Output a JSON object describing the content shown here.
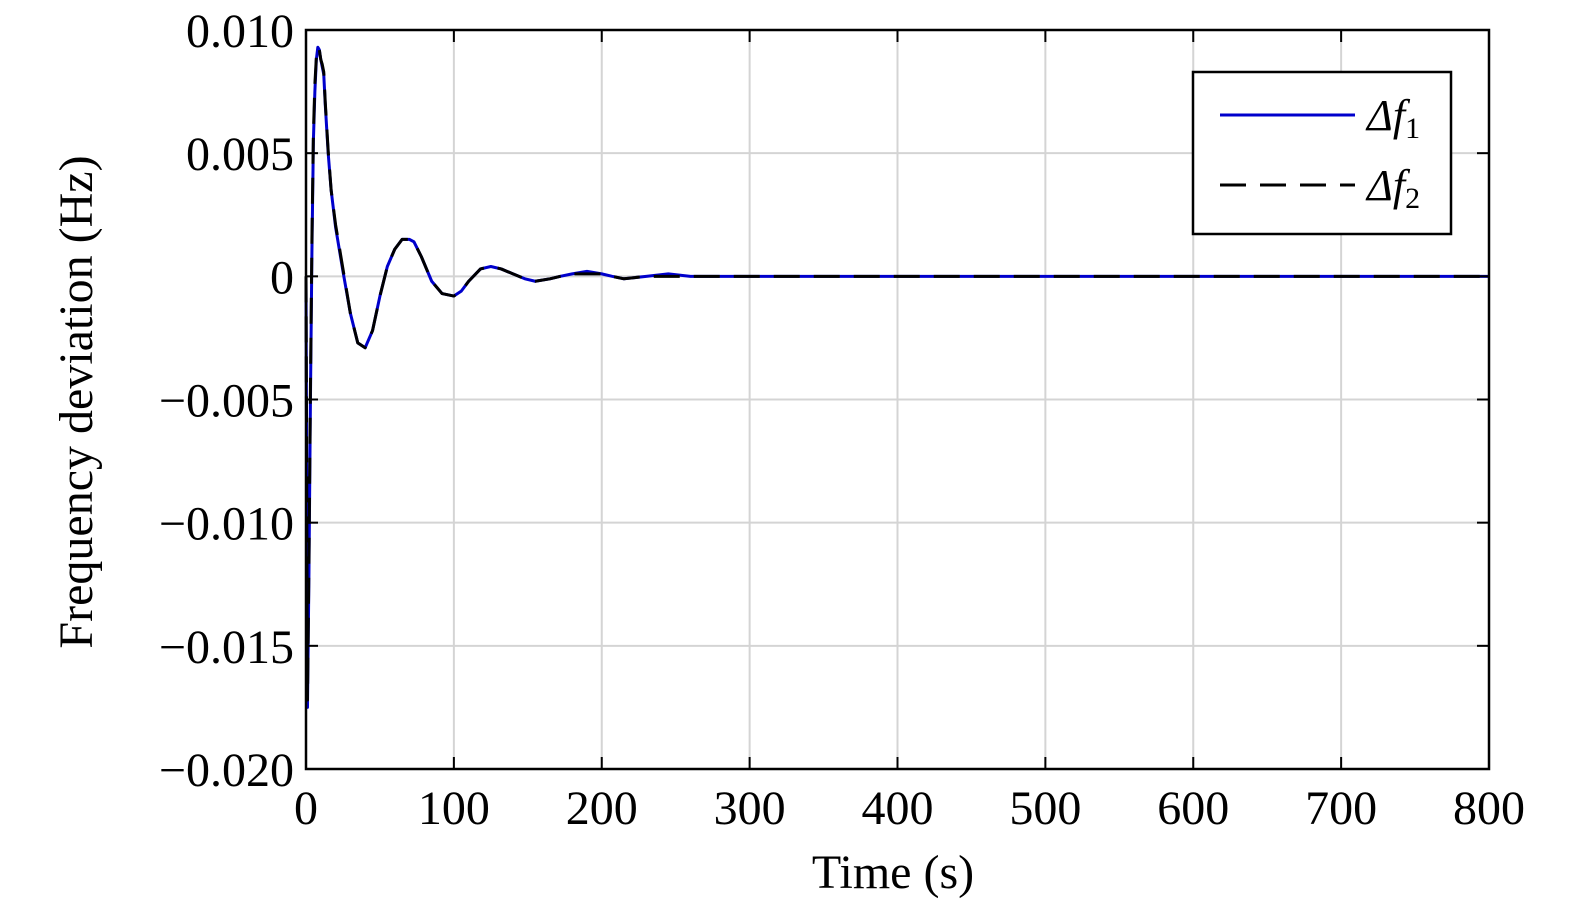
{
  "chart_data": {
    "type": "line",
    "title": "",
    "xlabel": "Time (s)",
    "ylabel": "Frequency deviation (Hz)",
    "xlim": [
      0,
      800
    ],
    "ylim": [
      -0.02,
      0.01
    ],
    "xticks": [
      0,
      100,
      200,
      300,
      400,
      500,
      600,
      700,
      800
    ],
    "xtick_labels": [
      "0",
      "100",
      "200",
      "300",
      "400",
      "500",
      "600",
      "700",
      "800"
    ],
    "yticks": [
      0.01,
      0.005,
      0,
      -0.005,
      -0.01,
      -0.015,
      -0.02
    ],
    "ytick_labels": [
      "0.010",
      "0.005",
      "0",
      "−0.005",
      "−0.010",
      "−0.015",
      "−0.020"
    ],
    "grid": true,
    "legend_position": "top-right",
    "series": [
      {
        "name": "Δf",
        "name_subscript": "1",
        "color": "#0000cc",
        "style": "solid",
        "x": [
          0,
          1,
          2,
          3,
          4,
          5,
          6,
          7,
          8,
          9,
          10,
          11,
          12,
          13,
          14,
          15,
          17,
          20,
          25,
          30,
          35,
          40,
          45,
          50,
          55,
          60,
          65,
          70,
          73,
          78,
          85,
          92,
          100,
          105,
          110,
          118,
          125,
          132,
          140,
          148,
          155,
          165,
          172,
          180,
          190,
          200,
          207,
          215,
          230,
          245,
          260,
          275,
          290,
          310,
          340,
          370,
          400,
          430,
          460,
          500,
          540,
          580,
          620,
          660,
          700,
          740,
          780,
          800
        ],
        "y": [
          0,
          -0.0175,
          -0.012,
          -0.005,
          0.001,
          0.0055,
          0.0075,
          0.0088,
          0.0093,
          0.0092,
          0.0088,
          0.0085,
          0.0082,
          0.007,
          0.006,
          0.005,
          0.0035,
          0.002,
          0.0002,
          -0.0015,
          -0.0027,
          -0.0029,
          -0.0022,
          -0.0008,
          0.0004,
          0.0011,
          0.0015,
          0.0015,
          0.0014,
          0.0008,
          -0.0002,
          -0.0007,
          -0.0008,
          -0.0006,
          -0.0002,
          0.0003,
          0.0004,
          0.0003,
          0.0001,
          -0.0001,
          -0.0002,
          -0.0001,
          0.0,
          0.0001,
          0.0002,
          0.0001,
          0.0,
          -0.0001,
          0.0,
          0.0001,
          0.0,
          0.0,
          0.0,
          0.0,
          0.0,
          0.0,
          0.0,
          0.0,
          0.0,
          0.0,
          0.0,
          0.0,
          0.0,
          0.0,
          0.0,
          0.0,
          0.0,
          0.0
        ]
      },
      {
        "name": "Δf",
        "name_subscript": "2",
        "color": "#000000",
        "style": "dashed",
        "x": [
          0,
          1,
          2,
          3,
          4,
          5,
          6,
          7,
          8,
          9,
          10,
          11,
          12,
          13,
          14,
          15,
          17,
          20,
          25,
          30,
          35,
          40,
          45,
          50,
          55,
          60,
          65,
          70,
          73,
          78,
          85,
          92,
          100,
          105,
          110,
          118,
          125,
          132,
          140,
          148,
          155,
          165,
          172,
          180,
          190,
          200,
          207,
          215,
          230,
          245,
          260,
          275,
          290,
          310,
          340,
          370,
          400,
          430,
          460,
          500,
          540,
          580,
          620,
          660,
          700,
          740,
          780,
          800
        ],
        "y": [
          0,
          -0.0172,
          -0.0115,
          -0.0045,
          0.0015,
          0.0058,
          0.0078,
          0.0089,
          0.0093,
          0.0092,
          0.0088,
          0.0086,
          0.0083,
          0.0071,
          0.0061,
          0.0051,
          0.0035,
          0.0021,
          0.0003,
          -0.0015,
          -0.0027,
          -0.0029,
          -0.0022,
          -0.0008,
          0.0004,
          0.0011,
          0.0015,
          0.0015,
          0.0014,
          0.0008,
          -0.0002,
          -0.0007,
          -0.0008,
          -0.0006,
          -0.0002,
          0.0003,
          0.0004,
          0.0003,
          0.0001,
          -0.0001,
          -0.0002,
          -0.0001,
          0.0,
          0.0001,
          0.0001,
          0.0001,
          0.0,
          -0.0001,
          0.0,
          0.0,
          0.0,
          0.0,
          0.0,
          0.0,
          0.0,
          0.0,
          0.0,
          0.0,
          0.0,
          0.0,
          0.0,
          0.0,
          0.0,
          0.0,
          0.0,
          0.0,
          0.0,
          0.0
        ]
      }
    ]
  }
}
